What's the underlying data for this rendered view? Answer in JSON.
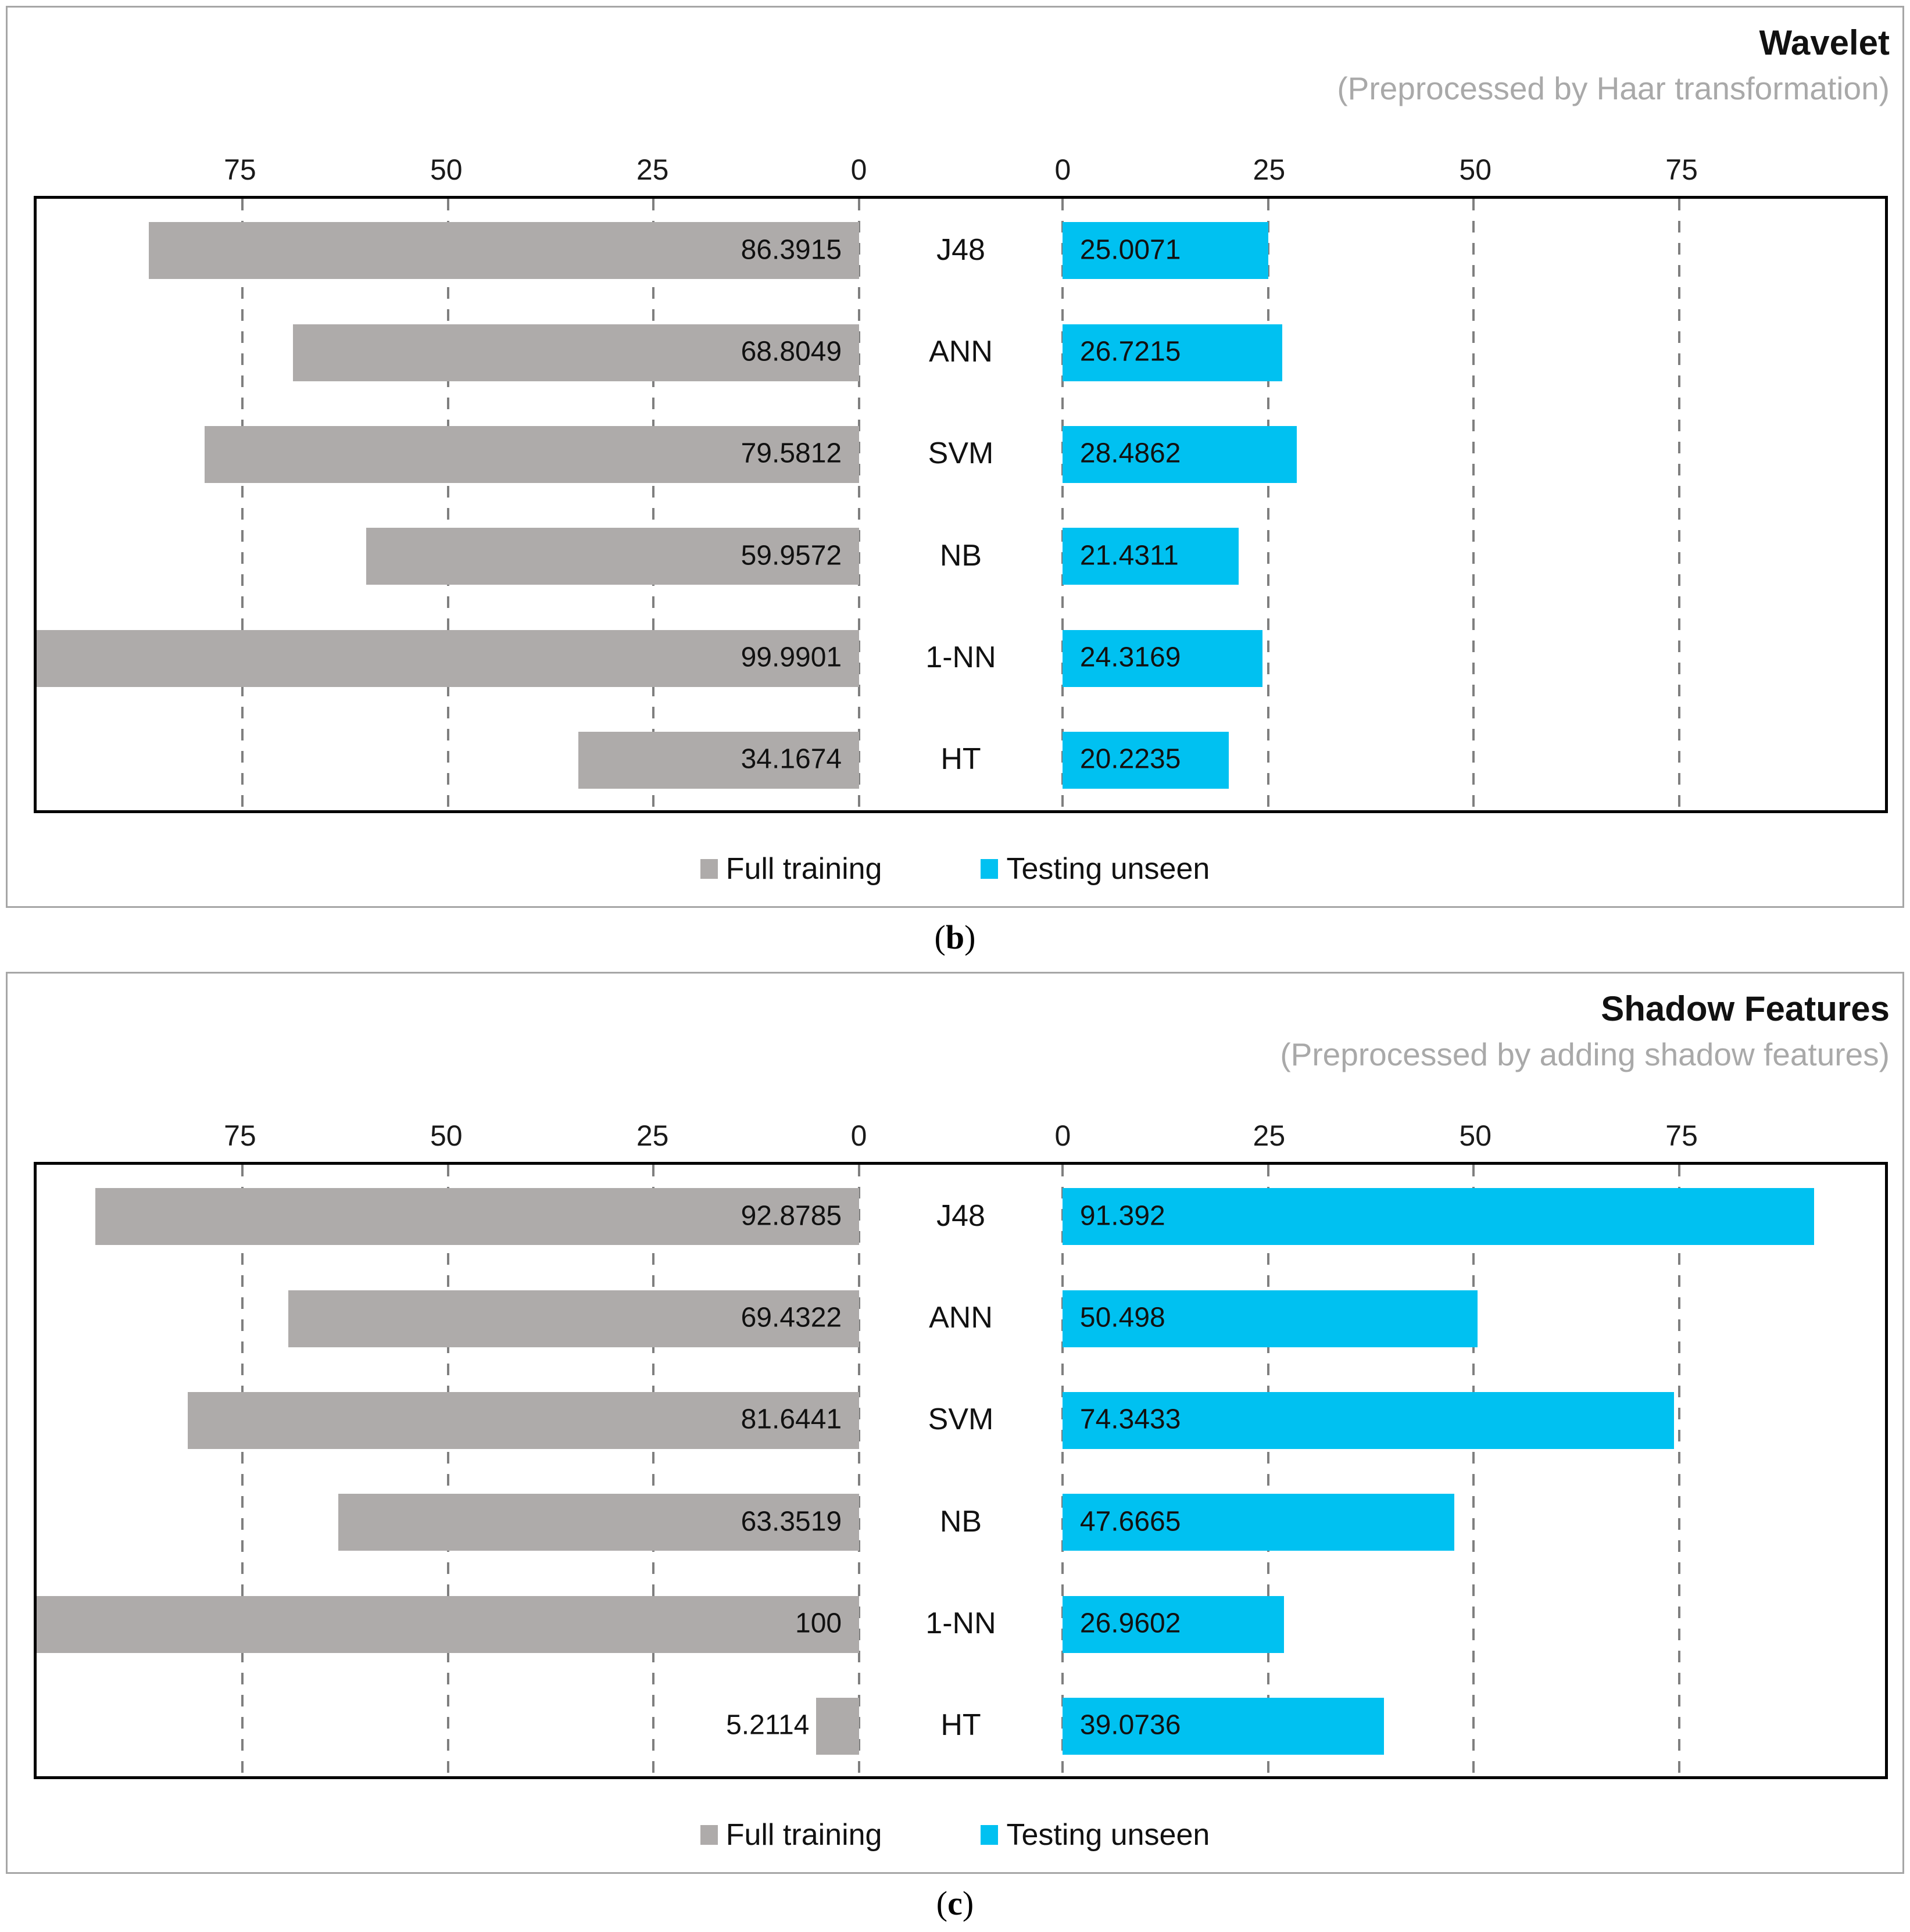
{
  "colors": {
    "full_training": "#aeabaa",
    "testing_unseen": "#00c1f1",
    "grid": "#7f7f7f",
    "subtitle": "#a9a9a9",
    "panel_border": "#a6a6a6",
    "plot_border": "#000000"
  },
  "legend": {
    "full_training": "Full training",
    "testing_unseen": "Testing unseen"
  },
  "captions": {
    "b": {
      "prefix": "(",
      "letter": "b",
      "suffix": ")"
    },
    "c": {
      "prefix": "(",
      "letter": "c",
      "suffix": ")"
    }
  },
  "chart_data": [
    {
      "type": "bar",
      "orientation": "horizontal-mirrored",
      "title": "Wavelet",
      "subtitle": "(Preprocessed by Haar transformation)",
      "categories": [
        "J48",
        "ANN",
        "SVM",
        "NB",
        "1-NN",
        "HT"
      ],
      "axis": {
        "left_ticks": [
          75,
          50,
          25,
          0
        ],
        "right_ticks": [
          0,
          25,
          50,
          75
        ],
        "max": 100,
        "grid": "dashed"
      },
      "legend_position": "bottom",
      "series": [
        {
          "name": "Full training",
          "side": "left",
          "color_key": "full_training",
          "values": [
            86.3915,
            68.8049,
            79.5812,
            59.9572,
            99.9901,
            34.1674
          ],
          "labels": [
            "86.3915",
            "68.8049",
            "79.5812",
            "59.9572",
            "99.9901",
            "34.1674"
          ]
        },
        {
          "name": "Testing unseen",
          "side": "right",
          "color_key": "testing_unseen",
          "values": [
            25.0071,
            26.7215,
            28.4862,
            21.4311,
            24.3169,
            20.2235
          ],
          "labels": [
            "25.0071",
            "26.7215",
            "28.4862",
            "21.4311",
            "24.3169",
            "20.2235"
          ]
        }
      ]
    },
    {
      "type": "bar",
      "orientation": "horizontal-mirrored",
      "title": "Shadow Features",
      "subtitle": "(Preprocessed by adding shadow features)",
      "categories": [
        "J48",
        "ANN",
        "SVM",
        "NB",
        "1-NN",
        "HT"
      ],
      "axis": {
        "left_ticks": [
          75,
          50,
          25,
          0
        ],
        "right_ticks": [
          0,
          25,
          50,
          75
        ],
        "max": 100,
        "grid": "dashed"
      },
      "legend_position": "bottom",
      "series": [
        {
          "name": "Full training",
          "side": "left",
          "color_key": "full_training",
          "values": [
            92.8785,
            69.4322,
            81.6441,
            63.3519,
            100,
            5.2114
          ],
          "labels": [
            "92.8785",
            "69.4322",
            "81.6441",
            "63.3519",
            "100",
            "5.2114"
          ]
        },
        {
          "name": "Testing unseen",
          "side": "right",
          "color_key": "testing_unseen",
          "values": [
            91.392,
            50.498,
            74.3433,
            47.6665,
            26.9602,
            39.0736
          ],
          "labels": [
            "91.392",
            "50.498",
            "74.3433",
            "47.6665",
            "26.9602",
            "39.0736"
          ]
        }
      ]
    }
  ]
}
